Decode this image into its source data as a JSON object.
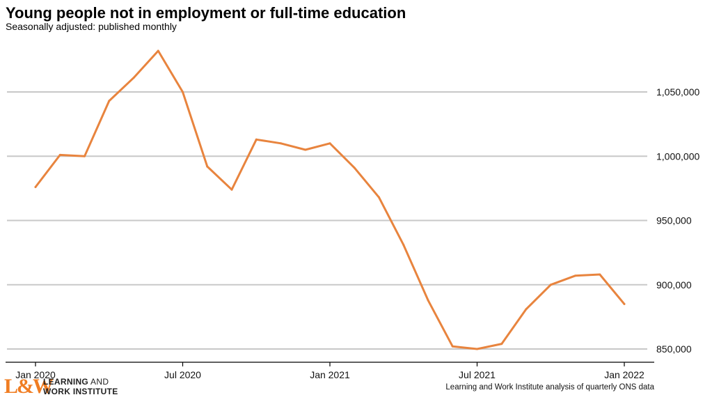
{
  "chart_data": {
    "type": "line",
    "title": "Young people not in employment or full-time education",
    "subtitle": "Seasonally adjusted: published monthly",
    "source": "Learning and Work Institute analysis of quarterly ONS data",
    "x_ticks": [
      {
        "label": "Jan 2020",
        "x": 0
      },
      {
        "label": "Jul 2020",
        "x": 6
      },
      {
        "label": "Jan 2021",
        "x": 12
      },
      {
        "label": "Jul 2021",
        "x": 18
      },
      {
        "label": "Jan 2022",
        "x": 24
      }
    ],
    "y_ticks": [
      850000,
      900000,
      950000,
      1000000,
      1050000
    ],
    "y_tick_labels": [
      "850,000",
      "900,000",
      "950,000",
      "1,000,000",
      "1,050,000"
    ],
    "xlim": [
      0,
      24
    ],
    "ylim": [
      850000,
      1080000
    ],
    "grid": true,
    "series": [
      {
        "color": "#e8843e",
        "x": [
          0,
          1,
          2,
          3,
          4,
          5,
          6,
          7,
          8,
          9,
          10,
          11,
          12,
          13,
          14,
          15,
          16,
          17,
          18,
          19,
          20,
          21,
          22,
          23,
          24
        ],
        "values": [
          976000,
          1001000,
          1000000,
          1043000,
          1061000,
          1082000,
          1050000,
          992000,
          974000,
          1013000,
          1010000,
          1005000,
          1010000,
          991000,
          968000,
          931000,
          888000,
          852000,
          850000,
          854000,
          881000,
          900000,
          907000,
          908000,
          885000
        ]
      }
    ]
  },
  "logo": {
    "mark": "L&W",
    "line1_bold": "LEARNING",
    "line1_rest": " AND",
    "line2": "WORK INSTITUTE"
  }
}
